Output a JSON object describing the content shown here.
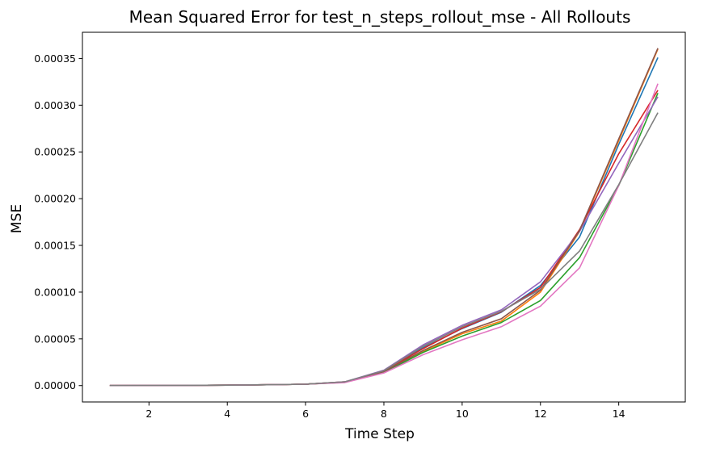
{
  "chart_data": {
    "type": "line",
    "title": "Mean Squared Error for test_n_steps_rollout_mse - All Rollouts",
    "xlabel": "Time Step",
    "ylabel": "MSE",
    "xlim": [
      0.3,
      15.7
    ],
    "ylim": [
      -1.75e-05,
      0.000378
    ],
    "xticks": [
      2,
      4,
      6,
      8,
      10,
      12,
      14
    ],
    "yticks": [
      0,
      5e-05,
      0.0001,
      0.00015,
      0.0002,
      0.00025,
      0.0003,
      0.00035
    ],
    "xtick_labels": [
      "2",
      "4",
      "6",
      "8",
      "10",
      "12",
      "14"
    ],
    "ytick_labels": [
      "0.00000",
      "0.00005",
      "0.00010",
      "0.00015",
      "0.00020",
      "0.00025",
      "0.00030",
      "0.00035"
    ],
    "grid": false,
    "x": [
      1,
      2,
      3,
      4,
      5,
      6,
      7,
      8,
      9,
      10,
      11,
      12,
      13,
      14,
      15
    ],
    "series": [
      {
        "color": "#1f77b4",
        "values": [
          1e-07,
          2e-07,
          3e-07,
          5e-07,
          9e-07,
          1.5e-06,
          3.8e-06,
          1.55e-05,
          4.05e-05,
          6.1e-05,
          7.85e-05,
          0.000107,
          0.000159,
          0.000258,
          0.000351
        ]
      },
      {
        "color": "#ff7f0e",
        "values": [
          1e-07,
          2e-07,
          3e-07,
          5e-07,
          9e-07,
          1.5e-06,
          3.5e-06,
          1.45e-05,
          3.65e-05,
          5.55e-05,
          6.9e-05,
          0.0001,
          0.000165,
          0.000262,
          0.00036
        ]
      },
      {
        "color": "#2ca02c",
        "values": [
          1e-07,
          2e-07,
          3e-07,
          5e-07,
          9e-07,
          1.5e-06,
          3.5e-06,
          1.4e-05,
          3.55e-05,
          5.3e-05,
          6.75e-05,
          9.1e-05,
          0.000137,
          0.000214,
          0.000313
        ]
      },
      {
        "color": "#d62728",
        "values": [
          1e-07,
          2e-07,
          3e-07,
          5e-07,
          9e-07,
          1.5e-06,
          4e-06,
          1.55e-05,
          3.95e-05,
          6.15e-05,
          7.9e-05,
          0.000105,
          0.000167,
          0.000248,
          0.000316
        ]
      },
      {
        "color": "#9467bd",
        "values": [
          1e-07,
          2e-07,
          3e-07,
          5e-07,
          9e-07,
          1.5e-06,
          4e-06,
          1.65e-05,
          4.35e-05,
          6.45e-05,
          8.1e-05,
          0.000111,
          0.000165,
          0.000238,
          0.000309
        ]
      },
      {
        "color": "#8c564b",
        "values": [
          1e-07,
          2e-07,
          3e-07,
          5e-07,
          9e-07,
          1.5e-06,
          3.7e-06,
          1.5e-05,
          3.75e-05,
          5.7e-05,
          7.15e-05,
          0.000102,
          0.000166,
          0.000264,
          0.000361
        ]
      },
      {
        "color": "#e377c2",
        "values": [
          1e-07,
          2e-07,
          3e-07,
          5e-07,
          9e-07,
          1.5e-06,
          3.2e-06,
          1.35e-05,
          3.3e-05,
          4.9e-05,
          6.3e-05,
          8.5e-05,
          0.000126,
          0.000214,
          0.000323
        ]
      },
      {
        "color": "#7f7f7f",
        "values": [
          1e-07,
          2e-07,
          3e-07,
          5e-07,
          9e-07,
          1.5e-06,
          4e-06,
          1.6e-05,
          4.2e-05,
          6.3e-05,
          7.95e-05,
          0.000103,
          0.000144,
          0.000215,
          0.000292
        ]
      }
    ]
  }
}
